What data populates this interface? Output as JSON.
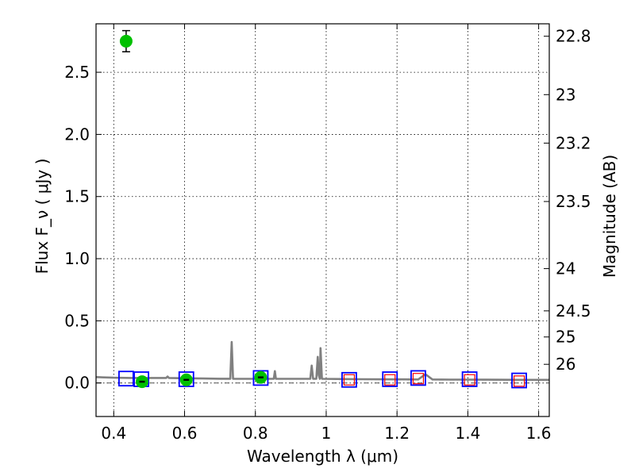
{
  "colors": {
    "model_line": "#808080",
    "observed_point": "#00c000",
    "model_photometry_box": "#0000ff",
    "upper_limit_box": "#ff0000"
  },
  "chart_data": {
    "type": "scatter",
    "xlabel": "Wavelength  λ (μm)",
    "ylabel": "Flux  F_ν  ( μJy )",
    "ylabel_right": "Magnitude (AB)",
    "xlim": [
      0.35,
      1.63
    ],
    "ylim": [
      -0.27,
      2.89
    ],
    "grid": true,
    "x_ticks": [
      0.4,
      0.6,
      0.8,
      1.0,
      1.2,
      1.4,
      1.6
    ],
    "x_tick_labels": [
      "0.4",
      "0.6",
      "0.8",
      "1",
      "1.2",
      "1.4",
      "1.6"
    ],
    "y_ticks": [
      0.0,
      0.5,
      1.0,
      1.5,
      2.0,
      2.5
    ],
    "y_tick_labels": [
      "0.0",
      "0.5",
      "1.0",
      "1.5",
      "2.0",
      "2.5"
    ],
    "right_ticks": [
      {
        "label": "22.8",
        "flux": 2.79
      },
      {
        "label": "23",
        "flux": 2.32
      },
      {
        "label": "23.2",
        "flux": 1.93
      },
      {
        "label": "23.5",
        "flux": 1.46
      },
      {
        "label": "24",
        "flux": 0.92
      },
      {
        "label": "24.5",
        "flux": 0.58
      },
      {
        "label": "25",
        "flux": 0.37
      },
      {
        "label": "26",
        "flux": 0.15
      }
    ],
    "observed_points": [
      {
        "x": 0.435,
        "y": 2.75,
        "yerr": 0.085
      },
      {
        "x": 0.48,
        "y": 0.01,
        "yerr": 0.008
      },
      {
        "x": 0.605,
        "y": 0.025,
        "yerr": 0.012
      },
      {
        "x": 0.815,
        "y": 0.045,
        "yerr": 0.012
      }
    ],
    "model_photometry": [
      {
        "x": 0.435,
        "y": 0.035
      },
      {
        "x": 0.478,
        "y": 0.03
      },
      {
        "x": 0.605,
        "y": 0.03
      },
      {
        "x": 0.815,
        "y": 0.04
      },
      {
        "x": 1.065,
        "y": 0.025
      },
      {
        "x": 1.18,
        "y": 0.03
      },
      {
        "x": 1.26,
        "y": 0.04
      },
      {
        "x": 1.405,
        "y": 0.03
      },
      {
        "x": 1.545,
        "y": 0.02
      }
    ],
    "upper_limits": [
      {
        "x": 1.065,
        "y": 0.025
      },
      {
        "x": 1.18,
        "y": 0.025
      },
      {
        "x": 1.26,
        "y": 0.035
      },
      {
        "x": 1.405,
        "y": 0.025
      },
      {
        "x": 1.545,
        "y": 0.015
      }
    ],
    "zero_line_y": 0.0,
    "model_spectrum": [
      [
        0.35,
        0.047
      ],
      [
        0.4,
        0.042
      ],
      [
        0.45,
        0.04
      ],
      [
        0.5,
        0.04
      ],
      [
        0.548,
        0.04
      ],
      [
        0.552,
        0.052
      ],
      [
        0.556,
        0.04
      ],
      [
        0.6,
        0.038
      ],
      [
        0.65,
        0.036
      ],
      [
        0.7,
        0.034
      ],
      [
        0.729,
        0.034
      ],
      [
        0.733,
        0.33
      ],
      [
        0.737,
        0.034
      ],
      [
        0.8,
        0.033
      ],
      [
        0.852,
        0.033
      ],
      [
        0.855,
        0.095
      ],
      [
        0.858,
        0.033
      ],
      [
        0.955,
        0.033
      ],
      [
        0.959,
        0.14
      ],
      [
        0.963,
        0.033
      ],
      [
        0.972,
        0.033
      ],
      [
        0.976,
        0.21
      ],
      [
        0.979,
        0.06
      ],
      [
        0.982,
        0.033
      ],
      [
        0.984,
        0.28
      ],
      [
        0.988,
        0.033
      ],
      [
        1.05,
        0.031
      ],
      [
        1.1,
        0.03
      ],
      [
        1.2,
        0.029
      ],
      [
        1.26,
        0.028
      ],
      [
        1.28,
        0.07
      ],
      [
        1.3,
        0.028
      ],
      [
        1.35,
        0.027
      ],
      [
        1.45,
        0.026
      ],
      [
        1.55,
        0.025
      ],
      [
        1.63,
        0.025
      ]
    ]
  }
}
